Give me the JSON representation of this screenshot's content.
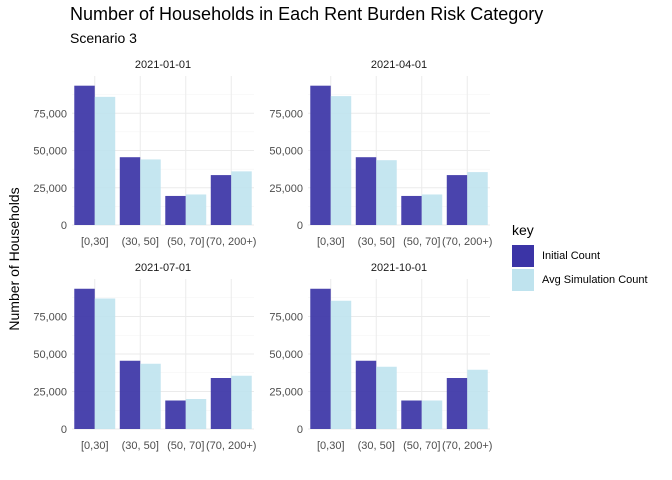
{
  "chart_data": {
    "type": "bar",
    "title": "Number of Households in Each Rent Burden Risk Category",
    "subtitle": "Scenario 3",
    "ylabel": "Number of Households",
    "xlabel": "",
    "ylim": [
      0,
      100000
    ],
    "yticks": [
      0,
      25000,
      50000,
      75000
    ],
    "ytick_labels": [
      "0",
      "25,000",
      "50,000",
      "75,000"
    ],
    "categories": [
      "[0,30]",
      "(30, 50]",
      "(50, 70]",
      "(70, 200+)"
    ],
    "grid": true,
    "legend_position": "right",
    "legend_title": "key",
    "series_names": [
      "Initial Count",
      "Avg Simulation Count"
    ],
    "colors": {
      "Initial Count": "#3b34a6",
      "Avg Simulation Count": "#bfe3ee"
    },
    "facets": [
      {
        "label": "2021-01-01",
        "series": [
          {
            "name": "Initial Count",
            "values": [
              93500,
              45500,
              19500,
              33500
            ]
          },
          {
            "name": "Avg Simulation Count",
            "values": [
              86000,
              44000,
              20500,
              36000
            ]
          }
        ]
      },
      {
        "label": "2021-04-01",
        "series": [
          {
            "name": "Initial Count",
            "values": [
              93500,
              45500,
              19500,
              33500
            ]
          },
          {
            "name": "Avg Simulation Count",
            "values": [
              86500,
              43500,
              20500,
              35500
            ]
          }
        ]
      },
      {
        "label": "2021-07-01",
        "series": [
          {
            "name": "Initial Count",
            "values": [
              93500,
              45500,
              19000,
              34000
            ]
          },
          {
            "name": "Avg Simulation Count",
            "values": [
              87000,
              43500,
              20000,
              35500
            ]
          }
        ]
      },
      {
        "label": "2021-10-01",
        "series": [
          {
            "name": "Initial Count",
            "values": [
              93500,
              45500,
              19000,
              34000
            ]
          },
          {
            "name": "Avg Simulation Count",
            "values": [
              85500,
              41500,
              19000,
              39500
            ]
          }
        ]
      }
    ]
  }
}
